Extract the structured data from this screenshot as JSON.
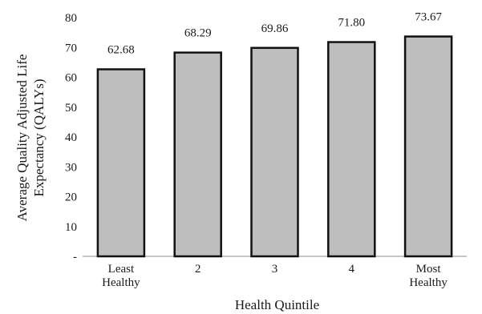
{
  "chart_data": {
    "type": "bar",
    "categories": [
      "Least Healthy",
      "2",
      "3",
      "4",
      "Most Healthy"
    ],
    "category_lines": [
      [
        "Least",
        "Healthy"
      ],
      [
        "2"
      ],
      [
        "3"
      ],
      [
        "4"
      ],
      [
        "Most",
        "Healthy"
      ]
    ],
    "values": [
      62.68,
      68.29,
      69.86,
      71.8,
      73.67
    ],
    "data_labels": [
      "62.68",
      "68.29",
      "69.86",
      "71.80",
      "73.67"
    ],
    "ylim": [
      0,
      80
    ],
    "yticks": [
      0,
      10,
      20,
      30,
      40,
      50,
      60,
      70,
      80
    ],
    "ytick_labels": [
      "-",
      "10",
      "20",
      "30",
      "40",
      "50",
      "60",
      "70",
      "80"
    ],
    "xlabel": "Health Quintile",
    "ylabel_lines": [
      "Average Quality Adjusted Life",
      "Expectancy (QALYs)"
    ],
    "grid": false,
    "legend": "none",
    "bar_fill": "#bebebe",
    "bar_stroke": "#111111"
  }
}
